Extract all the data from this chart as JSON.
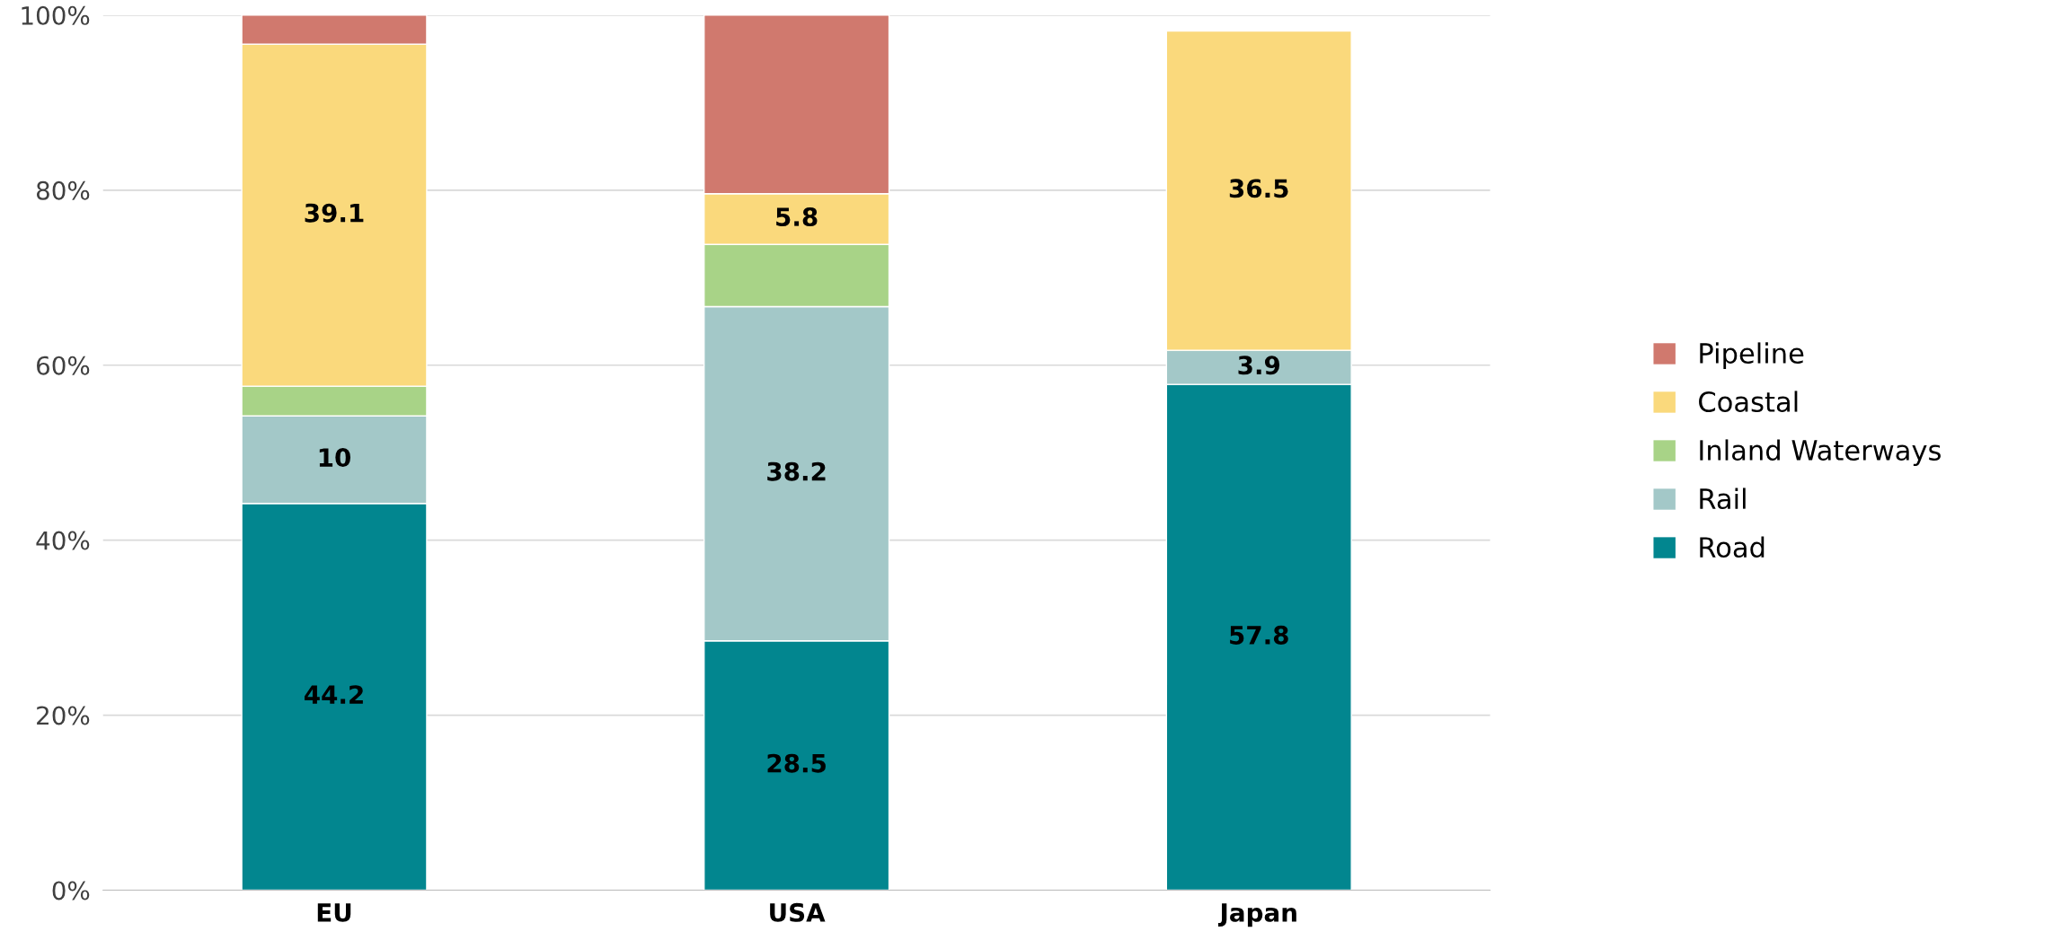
{
  "chart_data": {
    "type": "bar",
    "stacked": true,
    "categories": [
      "EU",
      "USA",
      "Japan"
    ],
    "series": [
      {
        "name": "Road",
        "color": "#02868f",
        "values": [
          44.2,
          28.5,
          57.8
        ],
        "value_labels": [
          "44.2",
          "28.5",
          "57.8"
        ]
      },
      {
        "name": "Rail",
        "color": "#a3c8c8",
        "values": [
          10,
          38.2,
          3.9
        ],
        "value_labels": [
          "10",
          "38.2",
          "3.9"
        ]
      },
      {
        "name": "Inland Waterways",
        "color": "#a8d387",
        "values": [
          3.4,
          7.1,
          null
        ],
        "value_labels": [
          null,
          null,
          null
        ]
      },
      {
        "name": "Coastal",
        "color": "#fad97c",
        "values": [
          39.1,
          5.8,
          36.5
        ],
        "value_labels": [
          "39.1",
          "5.8",
          "36.5"
        ]
      },
      {
        "name": "Pipeline",
        "color": "#d0796e",
        "values": [
          3.3,
          20.4,
          null
        ],
        "value_labels": [
          null,
          null,
          null
        ]
      }
    ],
    "ylim": [
      0,
      100
    ],
    "yticks": [
      {
        "value": 0,
        "label": "0%"
      },
      {
        "value": 20,
        "label": "20%"
      },
      {
        "value": 40,
        "label": "40%"
      },
      {
        "value": 60,
        "label": "60%"
      },
      {
        "value": 80,
        "label": "80%"
      },
      {
        "value": 100,
        "label": "100%"
      }
    ],
    "grid": "y",
    "legend": "right"
  }
}
